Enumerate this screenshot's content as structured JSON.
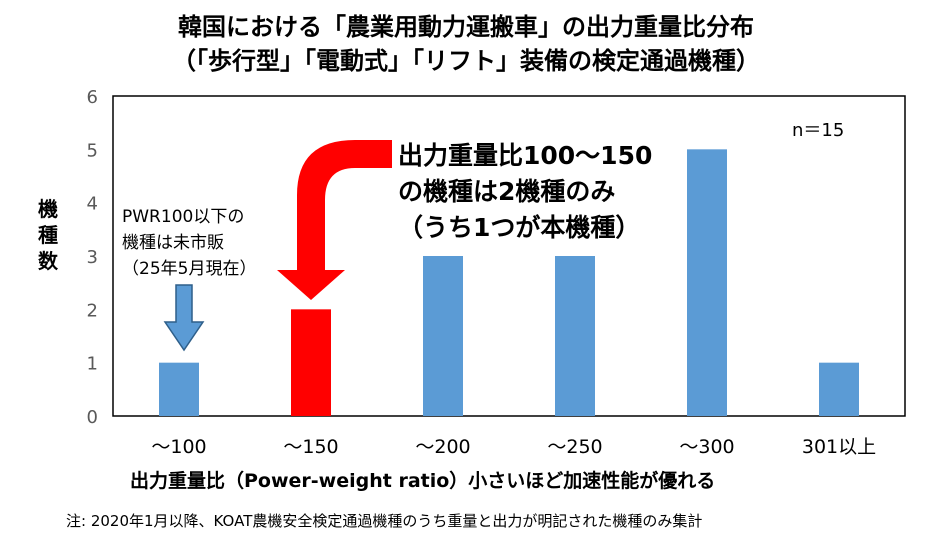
{
  "chart_data": {
    "type": "bar",
    "title": "韓国における「農業用動力運搬車」の出力重量比分布",
    "subtitle": "（「歩行型」「電動式」「リフト」装備の検定通過機種）",
    "ylabel_chars": [
      "機",
      "種",
      "数"
    ],
    "xlabel": "出力重量比（Power-weight ratio）小さいほど加速性能が優れる",
    "categories": [
      "～100",
      "～150",
      "～200",
      "～250",
      "～300",
      "301以上"
    ],
    "values": [
      1,
      2,
      3,
      3,
      5,
      1
    ],
    "bar_colors": [
      "#5b9bd5",
      "#ff0000",
      "#5b9bd5",
      "#5b9bd5",
      "#5b9bd5",
      "#5b9bd5"
    ],
    "ylim": [
      0,
      6
    ],
    "yticks": [
      0,
      1,
      2,
      3,
      4,
      5,
      6
    ],
    "grid": false,
    "legend": "none",
    "n_label": "n＝15",
    "annotation_left": [
      "PWR100以下の",
      "機種は未市販",
      "（25年5月現在）"
    ],
    "annotation_callout": [
      "出力重量比100～150",
      "の機種は2機種のみ",
      "（うち1つが本機種）"
    ],
    "footnote": "注: 2020年1月以降、KOAT農機安全検定通過機種のうち重量と出力が明記された機種のみ集計"
  },
  "colors": {
    "accent": "#5b9bd5",
    "highlight": "#ff0000",
    "arrow_blue_fill": "#5b9bd5",
    "arrow_blue_stroke": "#2e5f8a"
  },
  "icons": {
    "down_arrow_small": "blue-down-arrow-icon",
    "bent_arrow_large": "red-bent-arrow-icon"
  }
}
